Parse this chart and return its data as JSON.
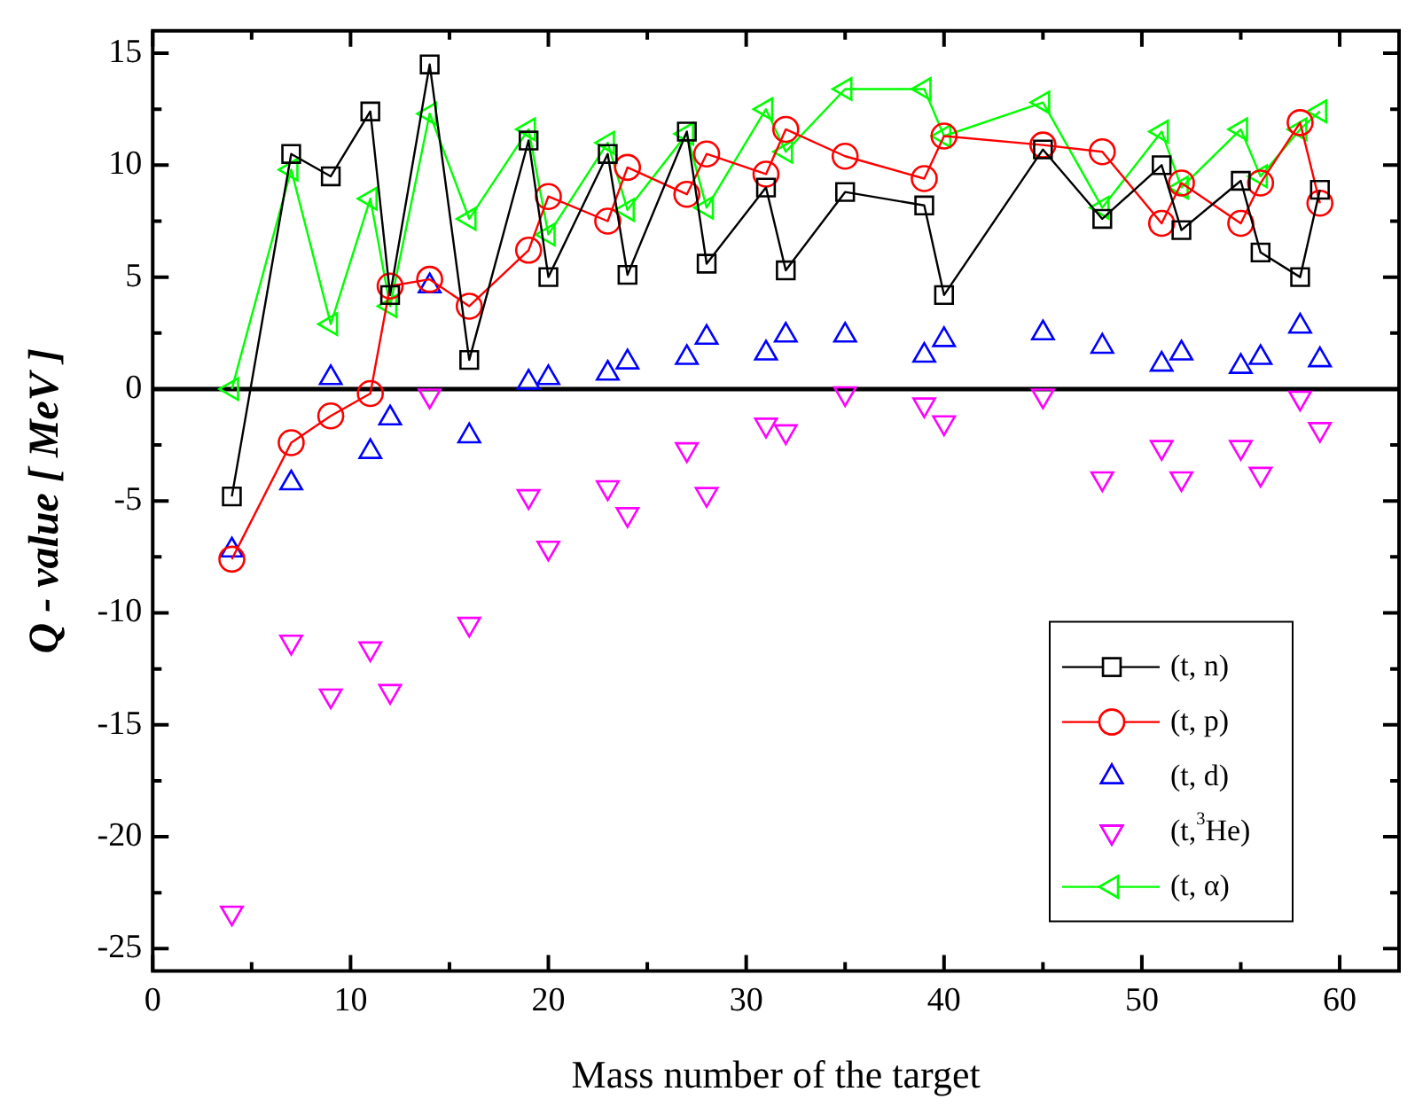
{
  "chart_data": {
    "type": "line",
    "xlabel": "Mass number of the target",
    "ylabel": "Q - value [ MeV ]",
    "xlim": [
      0,
      63
    ],
    "xticks": [
      0,
      10,
      20,
      30,
      40,
      50,
      60
    ],
    "ylim": [
      -26,
      16
    ],
    "yticks": [
      -25,
      -20,
      -15,
      -10,
      -5,
      0,
      5,
      10,
      15
    ],
    "x": [
      4,
      7,
      9,
      11,
      12,
      14,
      16,
      19,
      20,
      23,
      24,
      27,
      28,
      31,
      32,
      35,
      39,
      40,
      45,
      48,
      51,
      52,
      55,
      56,
      58,
      59
    ],
    "grid": false,
    "legend": "bottom right",
    "ref_lines": [
      {
        "axis": "y",
        "value": 0,
        "color": "#000000"
      }
    ],
    "series": [
      {
        "name": "(t, n)",
        "marker": "square",
        "color": "#000000",
        "values": [
          -4.8,
          10.5,
          9.5,
          12.4,
          4.2,
          14.5,
          1.3,
          11.1,
          5.0,
          10.5,
          5.1,
          11.5,
          5.6,
          9.0,
          5.3,
          8.8,
          8.2,
          4.2,
          10.7,
          7.6,
          10.0,
          7.1,
          9.3,
          6.1,
          5.0,
          8.9
        ]
      },
      {
        "name": "(t, p)",
        "marker": "circle",
        "color": "#ff0000",
        "values": [
          -7.6,
          -2.4,
          -1.2,
          -0.2,
          4.6,
          4.9,
          3.7,
          6.2,
          8.6,
          7.5,
          9.9,
          8.7,
          10.5,
          9.6,
          11.6,
          10.4,
          9.4,
          11.3,
          10.9,
          10.6,
          7.4,
          9.2,
          7.4,
          9.2,
          11.9,
          8.3
        ]
      },
      {
        "name": "(t, d)",
        "type": "scatter",
        "marker": "triangle",
        "color": "#0000ff",
        "values": [
          -7.2,
          -4.2,
          0.5,
          -2.8,
          -1.3,
          4.6,
          -2.1,
          0.3,
          0.5,
          0.7,
          1.2,
          1.4,
          2.3,
          1.6,
          2.4,
          2.4,
          1.5,
          2.2,
          2.5,
          1.9,
          1.1,
          1.6,
          1.0,
          1.4,
          2.8,
          1.3
        ]
      },
      {
        "name": "(t,$^{3}$He)",
        "type": "scatter",
        "marker": "triangle-down",
        "color": "#ff00ff",
        "values": [
          -23.4,
          -11.3,
          -13.7,
          -11.6,
          -13.5,
          -0.3,
          -10.5,
          -4.8,
          -7.1,
          -4.4,
          -5.6,
          -2.7,
          -4.7,
          -1.6,
          -1.9,
          -0.2,
          -0.7,
          -1.5,
          -0.3,
          -4.0,
          -2.6,
          -4.0,
          -2.6,
          -3.8,
          -0.4,
          -1.8
        ]
      },
      {
        "name": "(t, α)",
        "marker": "triangle-left",
        "color": "#00ff00",
        "values": [
          0,
          9.8,
          2.9,
          8.5,
          3.7,
          12.3,
          7.6,
          11.6,
          6.9,
          11.0,
          8.0,
          11.4,
          8.1,
          12.5,
          10.6,
          13.4,
          13.4,
          11.3,
          12.8,
          8.1,
          11.5,
          9.0,
          11.6,
          9.5,
          11.6,
          12.4
        ]
      }
    ]
  }
}
